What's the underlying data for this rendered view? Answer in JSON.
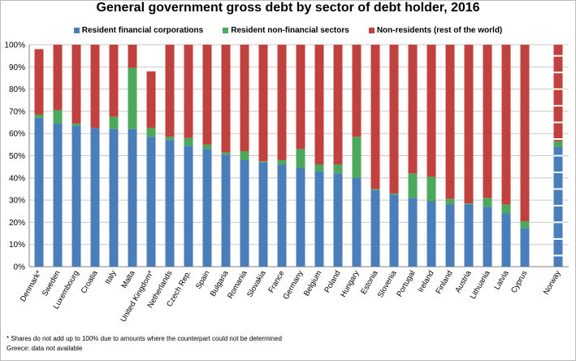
{
  "chart_data": {
    "type": "bar",
    "stacked": true,
    "title": "General government gross debt by sector of debt holder, 2016",
    "ylim": [
      0,
      100
    ],
    "y_ticks": [
      "0%",
      "10%",
      "20%",
      "30%",
      "40%",
      "50%",
      "60%",
      "70%",
      "80%",
      "90%",
      "100%"
    ],
    "grid": true,
    "legend_position": "top",
    "categories": [
      "Denmark*",
      "Sweden",
      "Luxembourg",
      "Croatia",
      "Italy",
      "Malta",
      "United Kingdom*",
      "Netherlands",
      "Czech Rep.",
      "Spain",
      "Bulgaria",
      "Romania",
      "Slovakia",
      "France",
      "Germany",
      "Belgium",
      "Poland",
      "Hungary",
      "Estonia",
      "Slovenia",
      "Portugal",
      "Ireland",
      "Finland",
      "Austria",
      "Lithuania",
      "Latvia",
      "Cyprus",
      "Norway"
    ],
    "series": [
      {
        "name": "Resident financial corporations",
        "color": "#4a7ebb",
        "values": [
          67,
          64.5,
          63.5,
          62.5,
          62,
          62,
          58.5,
          57,
          54.5,
          53,
          50.5,
          48,
          47,
          46,
          44.5,
          43,
          42,
          40,
          34.5,
          32.5,
          31,
          29.5,
          28,
          28,
          27,
          24,
          17.5,
          54
        ]
      },
      {
        "name": "Resident non-financial sectors",
        "color": "#4aa95a",
        "values": [
          1.5,
          6,
          1,
          0,
          5.5,
          27.5,
          4,
          1.5,
          3.5,
          2,
          1,
          4,
          0.5,
          2,
          8.5,
          3,
          4,
          18.5,
          0.5,
          0.5,
          11,
          11,
          2.5,
          0.5,
          4,
          4,
          3,
          2.5
        ]
      },
      {
        "name": "Non-residents (rest of the world)",
        "color": "#c0413e",
        "values": [
          29.5,
          29.5,
          35.5,
          37.5,
          32.5,
          10.5,
          25.5,
          41.5,
          42,
          45,
          48.5,
          48,
          52.5,
          52,
          47,
          54,
          54,
          41.5,
          65,
          67,
          58,
          59.5,
          69.5,
          71.5,
          69,
          72,
          79.5,
          43.5
        ]
      }
    ],
    "notes": [
      "* Shares do not add up to 100% due to amounts where the counterpart could not be determined",
      "Greece: data not available"
    ]
  }
}
